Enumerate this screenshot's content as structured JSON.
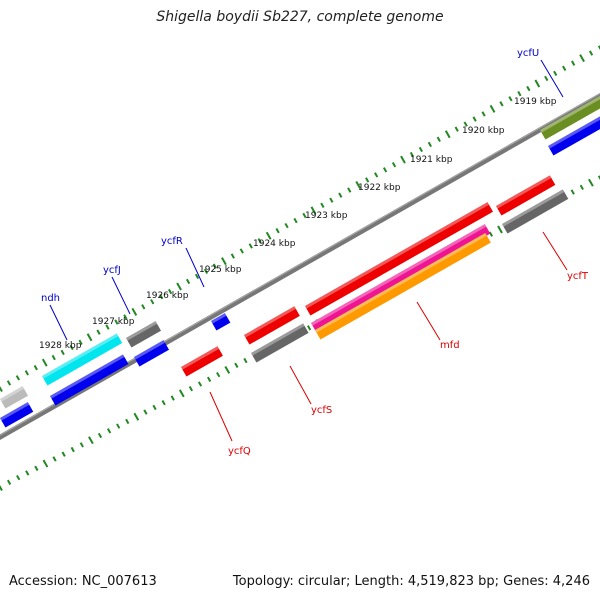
{
  "title": "Shigella boydii Sb227, complete genome",
  "footer": {
    "accession": "Accession: NC_007613",
    "summary": "Topology: circular; Length: 4,519,823 bp; Genes: 4,246"
  },
  "ruler": {
    "labels": [
      "1919 kbp",
      "1920 kbp",
      "1921 kbp",
      "1922 kbp",
      "1923 kbp",
      "1924 kbp",
      "1925 kbp",
      "1926 kbp",
      "1927 kbp",
      "1928 kbp"
    ]
  },
  "genes": [
    {
      "name": "ycfU",
      "strand": "forward",
      "color": "#0000cc"
    },
    {
      "name": "ycfR",
      "strand": "forward",
      "color": "#0000cc"
    },
    {
      "name": "ycfJ",
      "strand": "forward",
      "color": "#0000cc"
    },
    {
      "name": "ndh",
      "strand": "forward",
      "color": "#0000cc"
    },
    {
      "name": "ycfT",
      "strand": "reverse",
      "color": "#dd0000"
    },
    {
      "name": "mfd",
      "strand": "reverse",
      "color": "#dd0000"
    },
    {
      "name": "ycfS",
      "strand": "reverse",
      "color": "#dd0000"
    },
    {
      "name": "ycfQ",
      "strand": "reverse",
      "color": "#dd0000"
    }
  ],
  "colors": {
    "backbone": "#777777",
    "ticks": "#228822",
    "forward_label": "#0000cc",
    "reverse_label": "#dd0000",
    "cds_blue": "#0000ee",
    "cds_red": "#ee0000",
    "cds_gray": "#666666",
    "cds_cyan": "#00e5ee",
    "cds_olive": "#6b8e23",
    "cds_magenta": "#ee1493",
    "cds_orange": "#ff9900",
    "cds_lightgray": "#bbbbbb"
  }
}
